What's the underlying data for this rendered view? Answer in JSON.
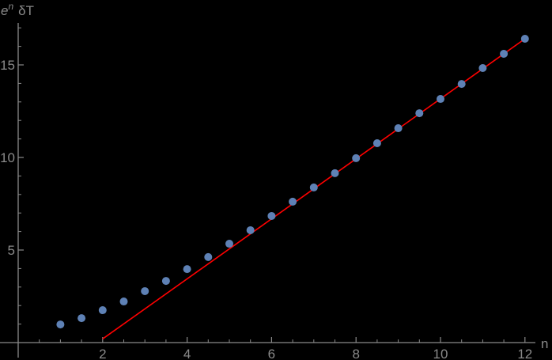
{
  "chart_data": {
    "type": "scatter",
    "title": "",
    "xlabel": "n",
    "ylabel": "e^n δT",
    "ylabel_parts": {
      "base": "e",
      "sup": "n",
      "rest": "δT"
    },
    "xlim": [
      0,
      12.2
    ],
    "ylim": [
      0,
      17.2
    ],
    "x_ticks": [
      2,
      4,
      6,
      8,
      10,
      12
    ],
    "x_tick_labels": [
      "2",
      "4",
      "6",
      "8",
      "10",
      "12"
    ],
    "x_minor_step": 0.5,
    "y_ticks": [
      5,
      10,
      15
    ],
    "y_tick_labels": [
      "5",
      "10",
      "15"
    ],
    "y_minor_step": 1,
    "grid": false,
    "legend": null,
    "series": [
      {
        "name": "data points",
        "kind": "scatter",
        "color": "#5e81b5",
        "x": [
          1,
          1.5,
          2,
          2.5,
          3,
          3.5,
          4,
          4.5,
          5,
          5.5,
          6,
          6.5,
          7,
          7.5,
          8,
          8.5,
          9,
          9.5,
          10,
          10.5,
          11,
          11.5,
          12
        ],
        "y": [
          0.98,
          1.32,
          1.75,
          2.22,
          2.78,
          3.33,
          3.97,
          4.62,
          5.34,
          6.07,
          6.84,
          7.61,
          8.38,
          9.15,
          9.96,
          10.77,
          11.58,
          12.39,
          13.16,
          13.97,
          14.83,
          15.6,
          16.41
        ]
      },
      {
        "name": "asymptotic line",
        "kind": "line",
        "color": "#ff0000",
        "x": [
          2,
          12
        ],
        "y": [
          0.2,
          16.41
        ]
      }
    ]
  },
  "colors": {
    "background": "#000000",
    "axis": "#8a8a8a",
    "points": "#5e81b5",
    "line": "#ff0000"
  }
}
